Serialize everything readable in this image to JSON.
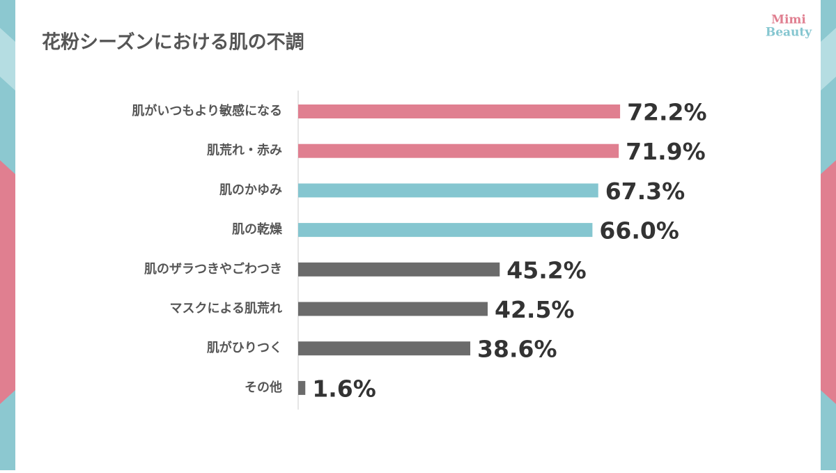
{
  "brand": {
    "line1": "Mimi",
    "line2": "Beauty"
  },
  "chart_data": {
    "type": "hbar",
    "title": "花粉シーズンにおける肌の不調",
    "categories": [
      "肌がいつもより敏感になる",
      "肌荒れ・赤み",
      "肌のかゆみ",
      "肌の乾燥",
      "肌のザラつきやごわつき",
      "マスクによる肌荒れ",
      "肌がひりつく",
      "その他"
    ],
    "values": [
      72.2,
      71.9,
      67.3,
      66.0,
      45.2,
      42.5,
      38.6,
      1.6
    ],
    "value_labels": [
      "72.2%",
      "71.9%",
      "67.3%",
      "66.0%",
      "45.2%",
      "42.5%",
      "38.6%",
      "1.6%"
    ],
    "colors": [
      "#e07f90",
      "#e07f90",
      "#85c6d0",
      "#85c6d0",
      "#6b6b6b",
      "#6b6b6b",
      "#6b6b6b",
      "#6b6b6b"
    ],
    "xlim": [
      0,
      100
    ]
  }
}
